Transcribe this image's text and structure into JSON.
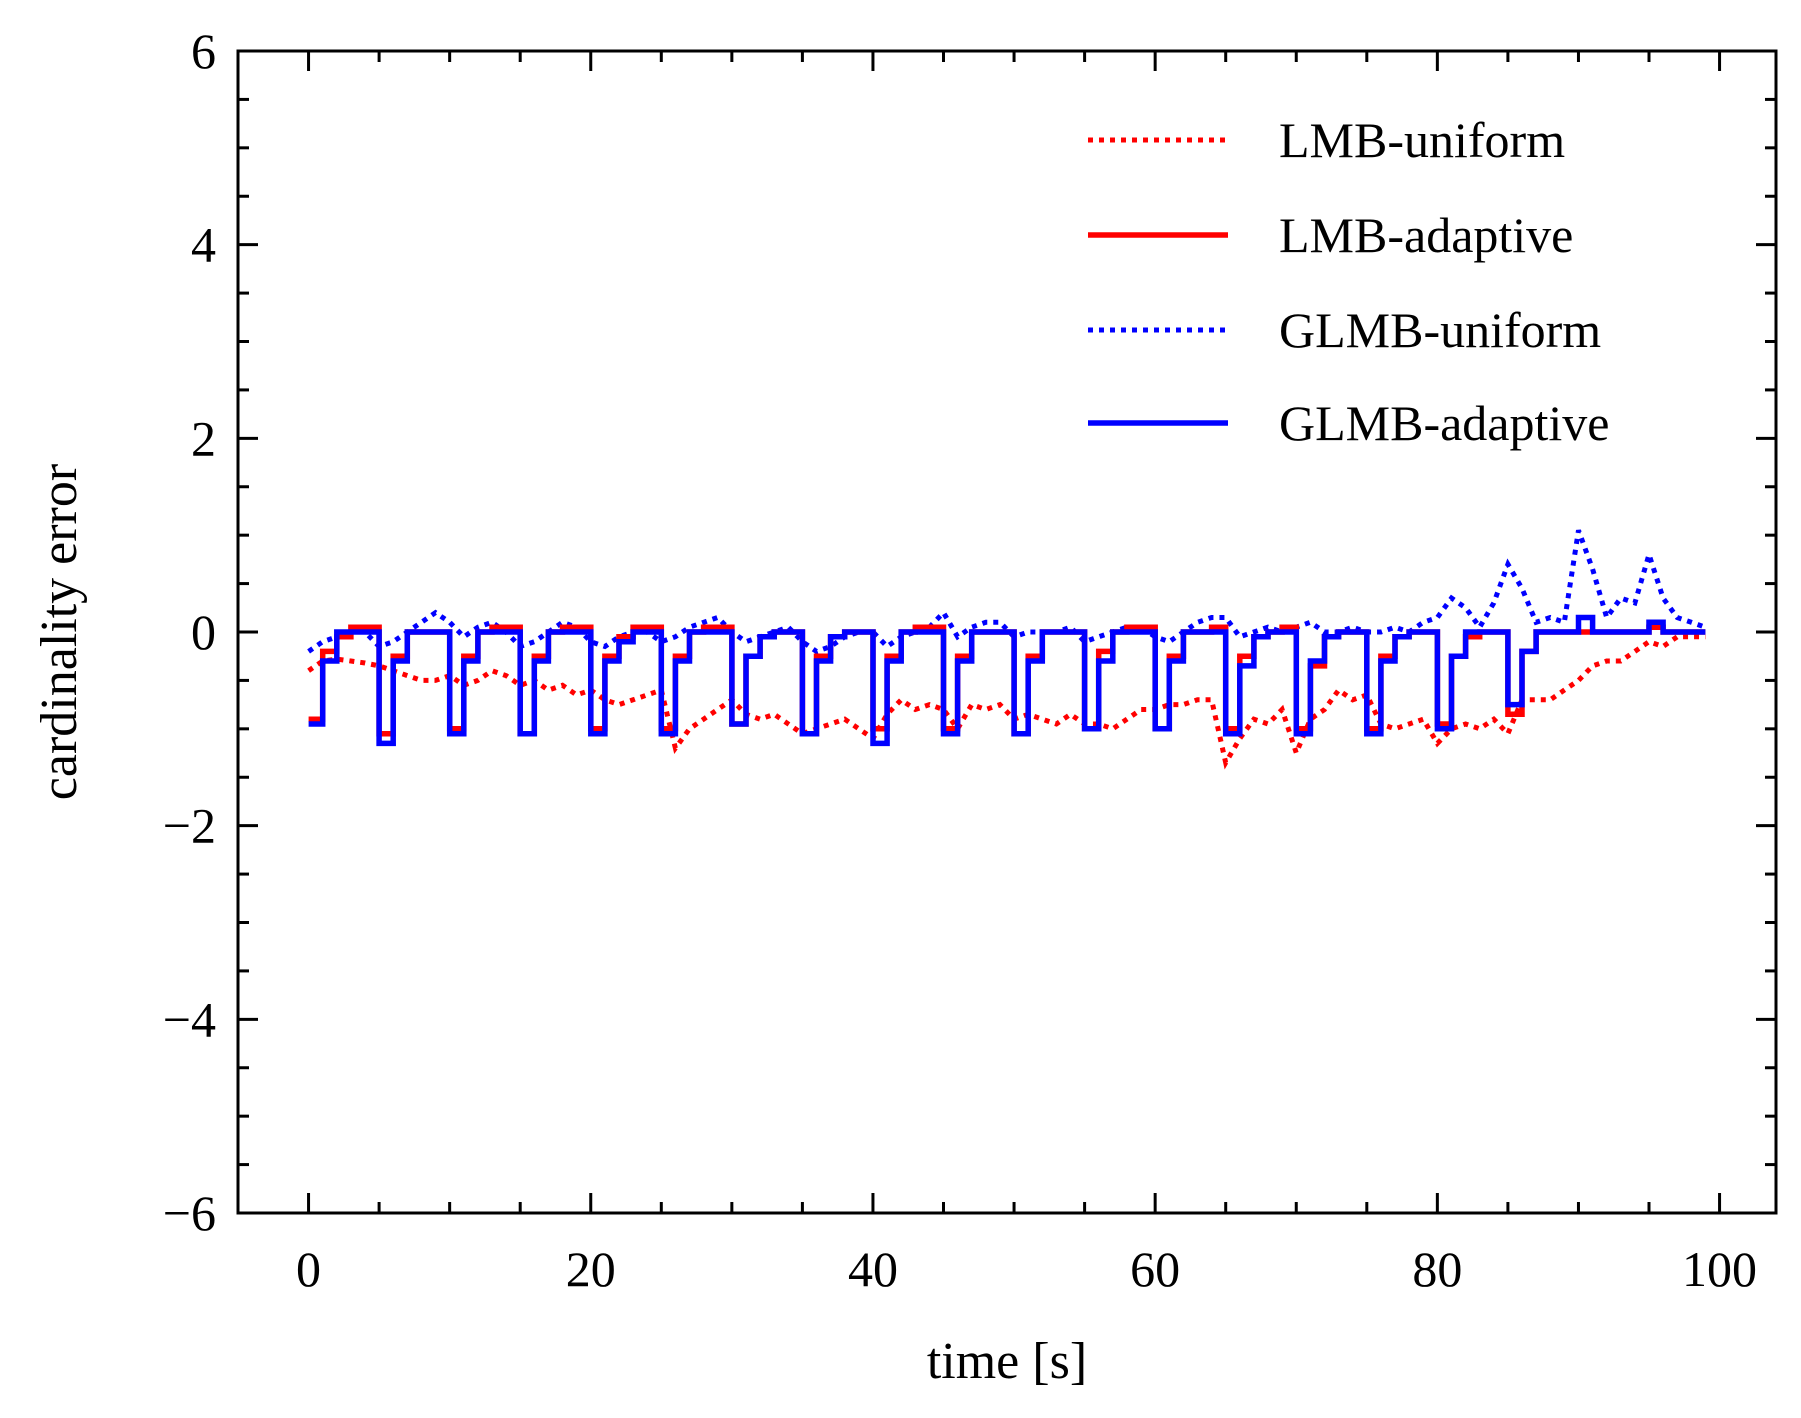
{
  "chart_data": {
    "type": "line",
    "title": "",
    "xlabel": "time [s]",
    "ylabel": "cardinality error",
    "xlim": [
      -5,
      104
    ],
    "ylim": [
      -6,
      6
    ],
    "xticks": [
      0,
      20,
      40,
      60,
      80,
      100
    ],
    "xtick_labels": [
      "0",
      "20",
      "40",
      "60",
      "80",
      "100"
    ],
    "yticks": [
      -6,
      -4,
      -2,
      0,
      2,
      4,
      6
    ],
    "ytick_labels": [
      "−6",
      "−4",
      "−2",
      "0",
      "2",
      "4",
      "6"
    ],
    "x_minor_step": 5,
    "y_minor_step": 0.5,
    "grid": false,
    "legend_position": "top-right",
    "series": [
      {
        "name": "LMB-uniform",
        "color": "#ff0000",
        "style": "dotted",
        "step": false,
        "x": [
          0,
          1,
          2,
          3,
          4,
          5,
          6,
          7,
          8,
          9,
          10,
          11,
          12,
          13,
          14,
          15,
          16,
          17,
          18,
          19,
          20,
          21,
          22,
          23,
          24,
          25,
          26,
          27,
          28,
          29,
          30,
          31,
          32,
          33,
          34,
          35,
          36,
          37,
          38,
          39,
          40,
          41,
          42,
          43,
          44,
          45,
          46,
          47,
          48,
          49,
          50,
          51,
          52,
          53,
          54,
          55,
          56,
          57,
          58,
          59,
          60,
          61,
          62,
          63,
          64,
          65,
          66,
          67,
          68,
          69,
          70,
          71,
          72,
          73,
          74,
          75,
          76,
          77,
          78,
          79,
          80,
          81,
          82,
          83,
          84,
          85,
          86,
          87,
          88,
          89,
          90,
          91,
          92,
          93,
          94,
          95,
          96,
          97,
          98,
          99
        ],
        "y": [
          -0.4,
          -0.3,
          -0.28,
          -0.3,
          -0.32,
          -0.35,
          -0.4,
          -0.45,
          -0.5,
          -0.5,
          -0.45,
          -0.55,
          -0.5,
          -0.4,
          -0.45,
          -0.55,
          -0.5,
          -0.6,
          -0.55,
          -0.65,
          -0.6,
          -0.7,
          -0.75,
          -0.7,
          -0.65,
          -0.6,
          -1.2,
          -1.0,
          -0.9,
          -0.8,
          -0.7,
          -0.85,
          -0.9,
          -0.85,
          -0.95,
          -1.05,
          -1.0,
          -0.95,
          -0.9,
          -1.0,
          -1.1,
          -0.85,
          -0.7,
          -0.8,
          -0.75,
          -0.8,
          -1.0,
          -0.75,
          -0.8,
          -0.75,
          -0.9,
          -0.85,
          -0.9,
          -0.95,
          -0.85,
          -0.95,
          -0.95,
          -1.0,
          -0.9,
          -0.8,
          -0.8,
          -0.75,
          -0.75,
          -0.7,
          -0.7,
          -1.35,
          -1.1,
          -0.9,
          -0.95,
          -0.8,
          -1.25,
          -0.9,
          -0.8,
          -0.6,
          -0.7,
          -0.65,
          -0.95,
          -1.0,
          -0.95,
          -0.9,
          -1.15,
          -1.0,
          -0.95,
          -1.0,
          -0.9,
          -1.05,
          -0.7,
          -0.7,
          -0.7,
          -0.6,
          -0.5,
          -0.35,
          -0.3,
          -0.3,
          -0.2,
          -0.1,
          -0.15,
          -0.05,
          -0.05,
          -0.05
        ]
      },
      {
        "name": "LMB-adaptive",
        "color": "#ff0000",
        "style": "solid",
        "step": true,
        "x": [
          0,
          1,
          2,
          3,
          4,
          5,
          6,
          7,
          8,
          9,
          10,
          11,
          12,
          13,
          14,
          15,
          16,
          17,
          18,
          19,
          20,
          21,
          22,
          23,
          24,
          25,
          26,
          27,
          28,
          29,
          30,
          31,
          32,
          33,
          34,
          35,
          36,
          37,
          38,
          39,
          40,
          41,
          42,
          43,
          44,
          45,
          46,
          47,
          48,
          49,
          50,
          51,
          52,
          53,
          54,
          55,
          56,
          57,
          58,
          59,
          60,
          61,
          62,
          63,
          64,
          65,
          66,
          67,
          68,
          69,
          70,
          71,
          72,
          73,
          74,
          75,
          76,
          77,
          78,
          79,
          80,
          81,
          82,
          83,
          84,
          85,
          86,
          87,
          88,
          89,
          90,
          91,
          92,
          93,
          94,
          95,
          96,
          97,
          98,
          99
        ],
        "y": [
          -0.9,
          -0.2,
          -0.05,
          0.05,
          0.05,
          -1.05,
          -0.25,
          0,
          0,
          0,
          -1.0,
          -0.25,
          0,
          0.05,
          0.05,
          -1.05,
          -0.25,
          0,
          0.05,
          0.05,
          -1.0,
          -0.25,
          -0.05,
          0.05,
          0.05,
          -1.0,
          -0.25,
          0,
          0.05,
          0.05,
          -0.95,
          -0.25,
          -0.05,
          0,
          0,
          -1.05,
          -0.25,
          -0.05,
          0,
          0,
          -1.0,
          -0.25,
          0,
          0.05,
          0.05,
          -1.0,
          -0.25,
          0,
          0,
          0,
          -1.05,
          -0.25,
          0,
          0,
          0,
          -1.0,
          -0.2,
          0,
          0.05,
          0.05,
          -1.0,
          -0.25,
          0,
          0,
          0.05,
          -1.0,
          -0.25,
          -0.05,
          0,
          0.05,
          -1.0,
          -0.35,
          -0.05,
          0,
          0,
          -1.0,
          -0.25,
          -0.05,
          0,
          0,
          -0.95,
          -0.25,
          -0.05,
          0,
          0,
          -0.85,
          -0.2,
          0,
          0,
          0,
          0,
          0,
          0,
          0,
          0,
          0.05,
          0,
          0,
          0,
          0
        ]
      },
      {
        "name": "GLMB-uniform",
        "color": "#0000ff",
        "style": "dotted",
        "step": false,
        "x": [
          0,
          1,
          2,
          3,
          4,
          5,
          6,
          7,
          8,
          9,
          10,
          11,
          12,
          13,
          14,
          15,
          16,
          17,
          18,
          19,
          20,
          21,
          22,
          23,
          24,
          25,
          26,
          27,
          28,
          29,
          30,
          31,
          32,
          33,
          34,
          35,
          36,
          37,
          38,
          39,
          40,
          41,
          42,
          43,
          44,
          45,
          46,
          47,
          48,
          49,
          50,
          51,
          52,
          53,
          54,
          55,
          56,
          57,
          58,
          59,
          60,
          61,
          62,
          63,
          64,
          65,
          66,
          67,
          68,
          69,
          70,
          71,
          72,
          73,
          74,
          75,
          76,
          77,
          78,
          79,
          80,
          81,
          82,
          83,
          84,
          85,
          86,
          87,
          88,
          89,
          90,
          91,
          92,
          93,
          94,
          95,
          96,
          97,
          98,
          99
        ],
        "y": [
          -0.2,
          -0.1,
          -0.05,
          0,
          0,
          -0.15,
          -0.1,
          0,
          0.1,
          0.2,
          0.1,
          -0.05,
          0.05,
          0.1,
          0,
          -0.15,
          -0.1,
          0,
          0.1,
          0.05,
          -0.1,
          -0.15,
          -0.05,
          0,
          0,
          -0.1,
          -0.05,
          0.05,
          0.1,
          0.15,
          0,
          -0.1,
          -0.05,
          0,
          0.05,
          -0.1,
          -0.2,
          -0.15,
          -0.05,
          0,
          0,
          -0.15,
          -0.05,
          0,
          0.05,
          0.2,
          -0.05,
          0.05,
          0.1,
          0.1,
          -0.05,
          0,
          0,
          0,
          0.05,
          -0.1,
          -0.05,
          0,
          0.05,
          0.05,
          -0.05,
          -0.1,
          0,
          0.1,
          0.15,
          0.15,
          -0.05,
          0,
          0.05,
          0,
          0.05,
          0.1,
          0,
          0,
          0.05,
          0,
          0,
          0.05,
          0,
          0.1,
          0.15,
          0.35,
          0.25,
          0.05,
          0.3,
          0.7,
          0.45,
          0.1,
          0.15,
          0.1,
          1.05,
          0.65,
          0.15,
          0.35,
          0.3,
          0.8,
          0.35,
          0.15,
          0.1,
          0.05
        ]
      },
      {
        "name": "GLMB-adaptive",
        "color": "#0000ff",
        "style": "solid",
        "step": true,
        "x": [
          0,
          1,
          2,
          3,
          4,
          5,
          6,
          7,
          8,
          9,
          10,
          11,
          12,
          13,
          14,
          15,
          16,
          17,
          18,
          19,
          20,
          21,
          22,
          23,
          24,
          25,
          26,
          27,
          28,
          29,
          30,
          31,
          32,
          33,
          34,
          35,
          36,
          37,
          38,
          39,
          40,
          41,
          42,
          43,
          44,
          45,
          46,
          47,
          48,
          49,
          50,
          51,
          52,
          53,
          54,
          55,
          56,
          57,
          58,
          59,
          60,
          61,
          62,
          63,
          64,
          65,
          66,
          67,
          68,
          69,
          70,
          71,
          72,
          73,
          74,
          75,
          76,
          77,
          78,
          79,
          80,
          81,
          82,
          83,
          84,
          85,
          86,
          87,
          88,
          89,
          90,
          91,
          92,
          93,
          94,
          95,
          96,
          97,
          98,
          99
        ],
        "y": [
          -0.95,
          -0.3,
          0,
          0,
          0,
          -1.15,
          -0.3,
          0,
          0,
          0,
          -1.05,
          -0.3,
          0,
          0,
          0,
          -1.05,
          -0.3,
          0,
          0,
          0,
          -1.05,
          -0.3,
          -0.1,
          0,
          0,
          -1.05,
          -0.3,
          0,
          0,
          0,
          -0.95,
          -0.25,
          -0.05,
          0,
          0,
          -1.05,
          -0.3,
          -0.05,
          0,
          0,
          -1.15,
          -0.3,
          0,
          0,
          0,
          -1.05,
          -0.3,
          0,
          0,
          0,
          -1.05,
          -0.3,
          0,
          0,
          0,
          -1.0,
          -0.3,
          0,
          0,
          0,
          -1.0,
          -0.3,
          0,
          0,
          0,
          -1.05,
          -0.35,
          -0.05,
          0,
          0,
          -1.05,
          -0.3,
          -0.05,
          0,
          0,
          -1.05,
          -0.3,
          -0.05,
          0,
          0,
          -1.0,
          -0.25,
          0,
          0,
          0,
          -0.75,
          -0.2,
          0,
          0,
          0,
          0.15,
          0,
          0,
          0,
          0,
          0.1,
          0,
          0,
          0,
          0
        ]
      }
    ]
  }
}
